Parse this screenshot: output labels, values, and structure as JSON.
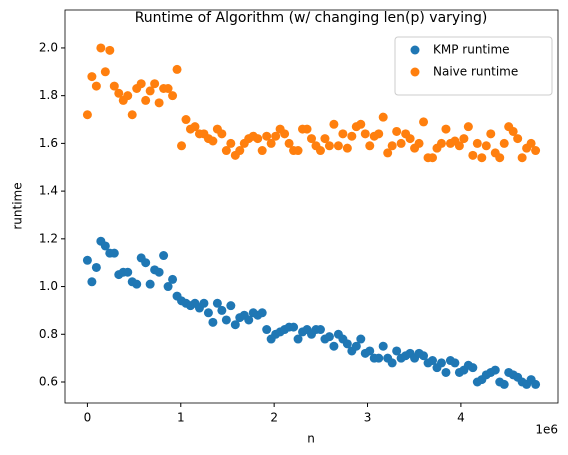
{
  "chart_data": {
    "type": "scatter",
    "title": "Runtime of Algorithm (w/ changing len(p) varying)",
    "x_label": "n",
    "y_label": "runtime",
    "x_offset_label": "1e6",
    "x": [
      0,
      48000,
      96000,
      144000,
      192000,
      240000,
      288000,
      336000,
      384000,
      432000,
      480000,
      528000,
      576000,
      624000,
      672000,
      720000,
      768000,
      816000,
      864000,
      912000,
      960000,
      1008000,
      1056000,
      1104000,
      1152000,
      1200000,
      1248000,
      1296000,
      1344000,
      1392000,
      1440000,
      1488000,
      1536000,
      1584000,
      1632000,
      1680000,
      1728000,
      1776000,
      1824000,
      1872000,
      1920000,
      1968000,
      2016000,
      2064000,
      2112000,
      2160000,
      2208000,
      2256000,
      2304000,
      2352000,
      2400000,
      2448000,
      2496000,
      2544000,
      2592000,
      2640000,
      2688000,
      2736000,
      2784000,
      2832000,
      2880000,
      2928000,
      2976000,
      3024000,
      3072000,
      3120000,
      3168000,
      3216000,
      3264000,
      3312000,
      3360000,
      3408000,
      3456000,
      3504000,
      3552000,
      3600000,
      3648000,
      3696000,
      3744000,
      3792000,
      3840000,
      3888000,
      3936000,
      3984000,
      4032000,
      4080000,
      4128000,
      4176000,
      4224000,
      4272000,
      4320000,
      4368000,
      4416000,
      4464000,
      4512000,
      4560000,
      4608000,
      4656000,
      4704000,
      4752000,
      4800000
    ],
    "series": [
      {
        "name": "KMP runtime",
        "color": "#1f77b4",
        "values": [
          1.11,
          1.02,
          1.08,
          1.19,
          1.17,
          1.14,
          1.14,
          1.05,
          1.06,
          1.06,
          1.02,
          1.01,
          1.12,
          1.1,
          1.01,
          1.07,
          1.06,
          1.13,
          1.0,
          1.03,
          0.96,
          0.94,
          0.93,
          0.92,
          0.93,
          0.91,
          0.93,
          0.89,
          0.85,
          0.93,
          0.9,
          0.86,
          0.92,
          0.84,
          0.87,
          0.88,
          0.86,
          0.89,
          0.88,
          0.89,
          0.82,
          0.78,
          0.8,
          0.81,
          0.82,
          0.83,
          0.83,
          0.78,
          0.81,
          0.82,
          0.8,
          0.82,
          0.82,
          0.78,
          0.79,
          0.75,
          0.8,
          0.78,
          0.76,
          0.73,
          0.75,
          0.78,
          0.72,
          0.73,
          0.7,
          0.7,
          0.75,
          0.7,
          0.68,
          0.73,
          0.7,
          0.71,
          0.72,
          0.7,
          0.72,
          0.71,
          0.68,
          0.69,
          0.66,
          0.68,
          0.64,
          0.69,
          0.68,
          0.64,
          0.65,
          0.67,
          0.66,
          0.6,
          0.61,
          0.63,
          0.64,
          0.65,
          0.6,
          0.59,
          0.64,
          0.63,
          0.62,
          0.6,
          0.59,
          0.61,
          0.59
        ]
      },
      {
        "name": "Naive runtime",
        "color": "#ff7f0e",
        "values": [
          1.72,
          1.88,
          1.84,
          2.0,
          1.9,
          1.99,
          1.84,
          1.81,
          1.78,
          1.8,
          1.72,
          1.83,
          1.85,
          1.78,
          1.82,
          1.85,
          1.77,
          1.83,
          1.83,
          1.8,
          1.91,
          1.59,
          1.7,
          1.66,
          1.67,
          1.64,
          1.64,
          1.62,
          1.61,
          1.66,
          1.64,
          1.57,
          1.6,
          1.55,
          1.57,
          1.6,
          1.62,
          1.63,
          1.62,
          1.57,
          1.63,
          1.6,
          1.63,
          1.66,
          1.64,
          1.6,
          1.57,
          1.57,
          1.66,
          1.66,
          1.62,
          1.59,
          1.57,
          1.62,
          1.59,
          1.68,
          1.59,
          1.64,
          1.58,
          1.63,
          1.67,
          1.68,
          1.64,
          1.59,
          1.63,
          1.64,
          1.71,
          1.56,
          1.59,
          1.65,
          1.6,
          1.64,
          1.62,
          1.58,
          1.6,
          1.69,
          1.54,
          1.54,
          1.58,
          1.6,
          1.66,
          1.6,
          1.61,
          1.59,
          1.62,
          1.67,
          1.55,
          1.6,
          1.54,
          1.59,
          1.64,
          1.56,
          1.54,
          1.6,
          1.67,
          1.65,
          1.62,
          1.54,
          1.58,
          1.6,
          1.57
        ]
      }
    ],
    "xlim": [
      -240000,
      5040000
    ],
    "xticks": [
      0,
      {
        "value": 1000000,
        "label": "1"
      },
      {
        "value": 2000000,
        "label": "2"
      },
      {
        "value": 3000000,
        "label": "3"
      },
      {
        "value": 4000000,
        "label": "4"
      }
    ],
    "ylim": [
      0.512,
      2.159
    ],
    "yticks": [
      0.6,
      0.8,
      {
        "value": 1.0,
        "label": "1.0"
      },
      1.2,
      1.4,
      1.6,
      1.8,
      {
        "value": 2.0,
        "label": "2.0"
      }
    ],
    "grid": false,
    "legend": "upper right"
  }
}
